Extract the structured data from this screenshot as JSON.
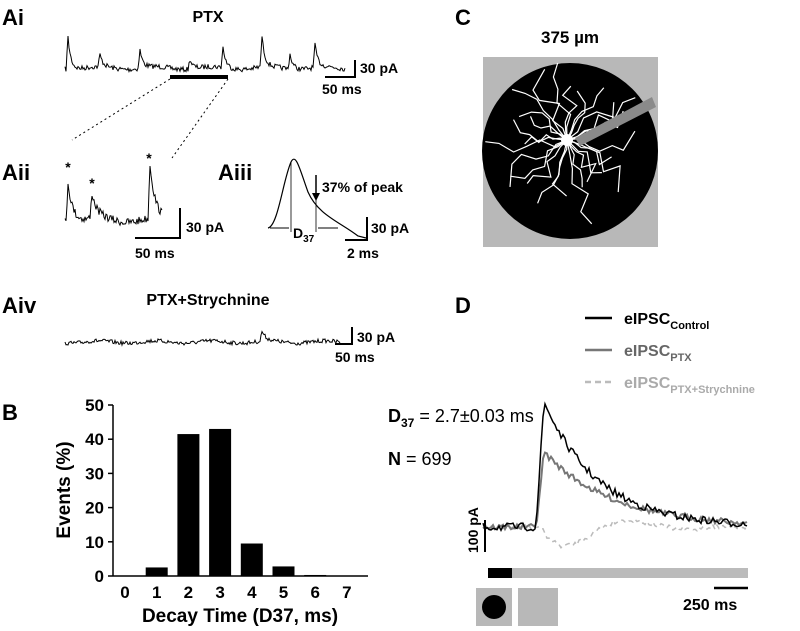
{
  "panels": {
    "ai": {
      "label": "Ai",
      "title": "PTX",
      "scale_y": "30 pA",
      "scale_x": "50 ms"
    },
    "aii": {
      "label": "Aii",
      "stars": [
        "*",
        "*",
        "*"
      ],
      "scale_y": "30 pA",
      "scale_x": "50 ms"
    },
    "aiii": {
      "label": "Aiii",
      "note": "37% of peak",
      "d_main": "D",
      "d_sub": "37",
      "scale_y": "30 pA",
      "scale_x": "2 ms"
    },
    "aiv": {
      "label": "Aiv",
      "title": "PTX+Strychnine",
      "scale_y": "30 pA",
      "scale_x": "50 ms"
    },
    "b": {
      "label": "B"
    },
    "c": {
      "label": "C",
      "title": "375 µm"
    },
    "d": {
      "label": "D",
      "legend": [
        {
          "main": "eIPSC",
          "sub": "Control"
        },
        {
          "main": "eIPSC",
          "sub": "PTX"
        },
        {
          "main": "eIPSC",
          "sub": "PTX+Strychnine"
        }
      ],
      "scale_y": "100 pA",
      "scale_x": "250 ms"
    }
  },
  "chart_data": {
    "type": "bar",
    "x_label": "Decay Time (D37, ms)",
    "y_label": "Events (%)",
    "categories": [
      "0",
      "1",
      "2",
      "3",
      "4",
      "5",
      "6",
      "7"
    ],
    "values": [
      0,
      2.5,
      41.5,
      43,
      9.5,
      2.8,
      0.3,
      0.1
    ],
    "color": "#000000",
    "ylim": [
      0,
      50
    ],
    "yticks": [
      0,
      10,
      20,
      30,
      40,
      50
    ],
    "annotations": [
      {
        "main": "D",
        "sub": "37",
        "rest": " = 2.7±0.03 ms"
      },
      {
        "main": "N",
        "rest": " = 699"
      }
    ]
  }
}
